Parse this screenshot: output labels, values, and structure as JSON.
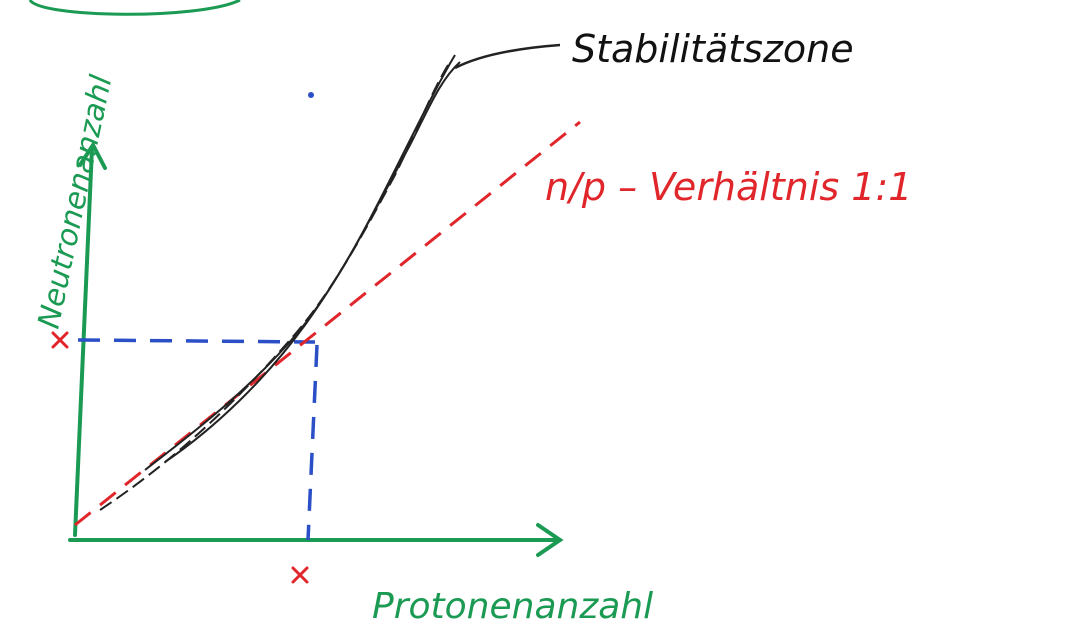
{
  "labels": {
    "stability_zone": "Stabilitätszone",
    "np_ratio": "n/p – Verhältnis 1:1",
    "y_axis": "Neutronenanzahl",
    "x_axis": "Protonenanzahl"
  }
}
